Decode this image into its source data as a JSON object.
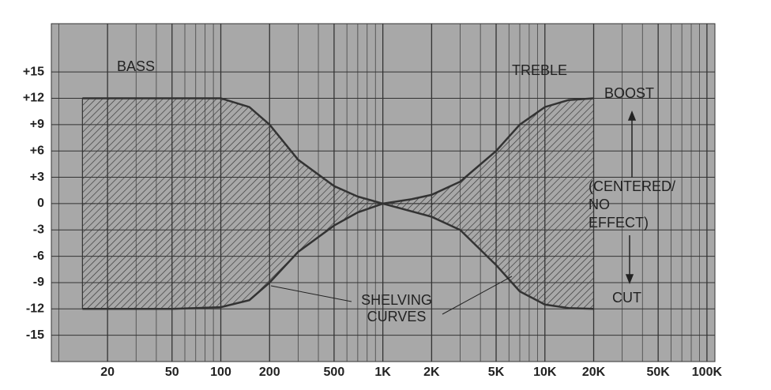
{
  "chart_data": {
    "type": "line",
    "xscale": "log",
    "grid": true,
    "xlim": [
      9,
      112000
    ],
    "ylim": [
      -18,
      20.5
    ],
    "xticks": [
      20,
      50,
      100,
      200,
      500,
      {
        "value": 1000,
        "label": "1K"
      },
      {
        "value": 2000,
        "label": "2K"
      },
      {
        "value": 5000,
        "label": "5K"
      },
      {
        "value": 10000,
        "label": "10K"
      },
      {
        "value": 20000,
        "label": "20K"
      },
      {
        "value": 50000,
        "label": "50K"
      },
      {
        "value": 100000,
        "label": "100K"
      }
    ],
    "xminorticks": [
      10,
      30,
      40,
      60,
      70,
      80,
      90,
      300,
      400,
      600,
      700,
      800,
      900,
      3000,
      4000,
      6000,
      7000,
      8000,
      9000,
      30000,
      40000,
      60000,
      70000,
      80000,
      90000
    ],
    "yticks": [
      {
        "value": 15,
        "label": "+15"
      },
      {
        "value": 12,
        "label": "+12"
      },
      {
        "value": 9,
        "label": "+9"
      },
      {
        "value": 6,
        "label": "+6"
      },
      {
        "value": 3,
        "label": "+3"
      },
      0,
      -3,
      -6,
      -9,
      -12,
      -15
    ],
    "annotations": [
      "BASS",
      "TREBLE",
      "BOOST",
      "(CENTERED/",
      "NO",
      "EFFECT)",
      "CUT",
      "SHELVING",
      "CURVES"
    ],
    "series": [
      {
        "name": "Bass boost",
        "color": "#333333",
        "x": [
          14,
          50,
          100,
          150,
          200,
          300,
          500,
          700,
          1000
        ],
        "values": [
          12,
          12,
          12,
          11,
          9,
          5,
          2,
          0.8,
          0
        ]
      },
      {
        "name": "Bass cut",
        "color": "#333333",
        "x": [
          14,
          50,
          100,
          150,
          200,
          300,
          500,
          700,
          1000
        ],
        "values": [
          -12,
          -12,
          -11.8,
          -11,
          -9,
          -5.5,
          -2.5,
          -1,
          0
        ]
      },
      {
        "name": "Treble boost",
        "color": "#333333",
        "x": [
          1000,
          1500,
          2000,
          3000,
          5000,
          7000,
          10000,
          14000,
          20000
        ],
        "values": [
          0,
          0.5,
          1,
          2.5,
          6,
          9,
          11,
          11.8,
          12
        ]
      },
      {
        "name": "Treble cut",
        "color": "#333333",
        "x": [
          1000,
          2000,
          3000,
          5000,
          7000,
          10000,
          14000,
          20000
        ],
        "values": [
          0,
          -1.5,
          -3,
          -7,
          -10,
          -11.5,
          -11.9,
          -12
        ]
      }
    ]
  }
}
